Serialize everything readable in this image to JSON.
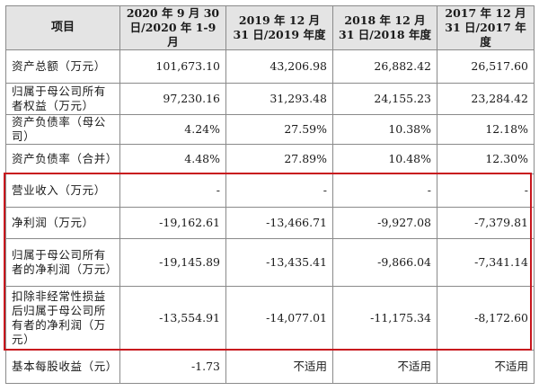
{
  "header": {
    "item": "项目",
    "p1": "2020 年 9 月 30 日/2020 年 1-9 月",
    "p2": "2019 年 12 月 31 日/2019 年度",
    "p3": "2018 年 12 月 31 日/2018 年度",
    "p4": "2017 年 12 月 31 日/2017 年度"
  },
  "rows": [
    {
      "label": "资产总额（万元）",
      "values": [
        "101,673.10",
        "43,206.98",
        "26,882.42",
        "26,517.60"
      ]
    },
    {
      "label": "归属于母公司所有者权益（万元）",
      "values": [
        "97,230.16",
        "31,293.48",
        "24,155.23",
        "23,284.42"
      ]
    },
    {
      "label": "资产负债率（母公司）",
      "values": [
        "4.24%",
        "27.59%",
        "10.38%",
        "12.18%"
      ]
    },
    {
      "label": "资产负债率（合并）",
      "values": [
        "4.48%",
        "27.89%",
        "10.48%",
        "12.30%"
      ]
    },
    {
      "label": "营业收入（万元）",
      "values": [
        "-",
        "-",
        "-",
        "-"
      ]
    },
    {
      "label": "净利润（万元）",
      "values": [
        "-19,162.61",
        "-13,466.71",
        "-9,927.08",
        "-7,379.81"
      ]
    },
    {
      "label": "归属于母公司所有者的净利润（万元）",
      "values": [
        "-19,145.89",
        "-13,435.41",
        "-9,866.04",
        "-7,341.14"
      ]
    },
    {
      "label": "扣除非经常性损益后归属于母公司所有者的净利润（万元）",
      "values": [
        "-13,554.91",
        "-14,077.01",
        "-11,175.34",
        "-8,172.60"
      ]
    },
    {
      "label": "基本每股收益（元）",
      "values": [
        "-1.73",
        "不适用",
        "不适用",
        "不适用"
      ]
    }
  ],
  "colors": {
    "highlight_border": "#c8161d",
    "header_bg": "#e4e4e4",
    "grid": "#8a8a8a"
  }
}
